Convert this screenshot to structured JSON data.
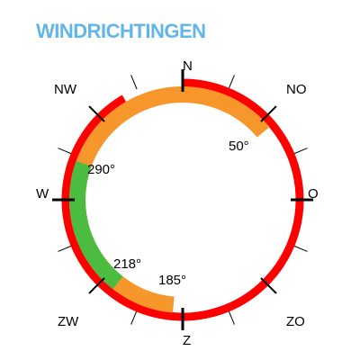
{
  "title": "WINDRICHTINGEN",
  "colors": {
    "title": "#62b5e8",
    "outer": "#ff0000",
    "middle": "#f7962b",
    "inner": "#4bbc3f",
    "tick": "#000000"
  },
  "compass": {
    "n": "N",
    "no": "NO",
    "o": "O",
    "zo": "ZO",
    "z": "Z",
    "zw": "ZW",
    "w": "W",
    "nw": "NW"
  },
  "arcs": {
    "outer": {
      "from": 0,
      "to": 330
    },
    "middle": {
      "from": 218,
      "to": 410
    },
    "middle_tail": {
      "from": 185,
      "to": 218
    },
    "inner": {
      "from": 218,
      "to": 290
    }
  },
  "angle_labels": {
    "a50": "50°",
    "a290": "290°",
    "a218": "218°",
    "a185": "185°"
  }
}
